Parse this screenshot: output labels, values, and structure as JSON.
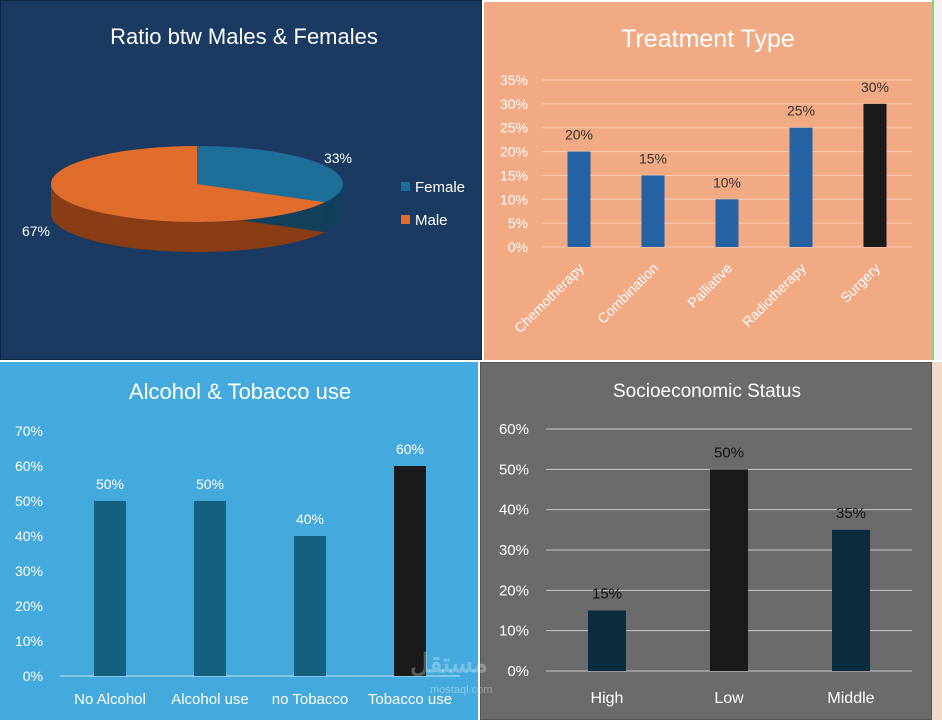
{
  "chart_data": [
    {
      "id": "gender",
      "type": "pie",
      "title": "Ratio btw Males & Females",
      "legend_position": "right",
      "categories": [
        "Female",
        "Male"
      ],
      "values": [
        33,
        67
      ],
      "labels": [
        "33%",
        "67%"
      ],
      "colors": [
        "#1e6e9a",
        "#e06d2c"
      ]
    },
    {
      "id": "treatment",
      "type": "bar",
      "title": "Treatment Type",
      "categories": [
        "Chemotherapy",
        "Combination",
        "Palliative",
        "Radiotherapy",
        "Surgery"
      ],
      "values": [
        20,
        15,
        10,
        25,
        30
      ],
      "labels": [
        "20%",
        "15%",
        "10%",
        "25%",
        "30%"
      ],
      "yticks": [
        "0%",
        "5%",
        "10%",
        "15%",
        "20%",
        "25%",
        "30%",
        "35%"
      ],
      "ylim": [
        0,
        35
      ],
      "grid": true,
      "colors": [
        "#2462a3",
        "#2462a3",
        "#2462a3",
        "#2462a3",
        "#1a1a1a"
      ]
    },
    {
      "id": "alcohol",
      "type": "bar",
      "title": "Alcohol & Tobacco use",
      "categories": [
        "No Alcohol",
        "Alcohol use",
        "no Tobacco",
        "Tobacco use"
      ],
      "values": [
        50,
        50,
        40,
        60
      ],
      "labels": [
        "50%",
        "50%",
        "40%",
        "60%"
      ],
      "yticks": [
        "0%",
        "10%",
        "20%",
        "30%",
        "40%",
        "50%",
        "60%",
        "70%"
      ],
      "ylim": [
        0,
        70
      ],
      "grid": false,
      "colors": [
        "#155f80",
        "#155f80",
        "#155f80",
        "#1a1a1a"
      ]
    },
    {
      "id": "socio",
      "type": "bar",
      "title": "Socioeconomic Status",
      "categories": [
        "High",
        "Low",
        "Middle"
      ],
      "values": [
        15,
        50,
        35
      ],
      "labels": [
        "15%",
        "50%",
        "35%"
      ],
      "yticks": [
        "0%",
        "10%",
        "20%",
        "30%",
        "40%",
        "50%",
        "60%"
      ],
      "ylim": [
        0,
        60
      ],
      "grid": true,
      "colors": [
        "#0b2b3e",
        "#1a1a1a",
        "#0b2b3e"
      ]
    }
  ],
  "watermark": "مستقل",
  "watermark_url": "mostaql.com"
}
